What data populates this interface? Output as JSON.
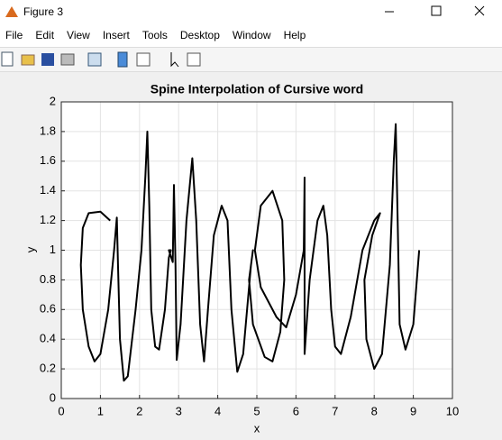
{
  "window": {
    "title": "Figure 3"
  },
  "menu": [
    "File",
    "Edit",
    "View",
    "Insert",
    "Tools",
    "Desktop",
    "Window",
    "Help"
  ],
  "chart_data": {
    "type": "line",
    "title": "Spine Interpolation of Cursive word",
    "xlabel": "x",
    "ylabel": "y",
    "xlim": [
      0,
      10
    ],
    "xticks": [
      0,
      1,
      2,
      3,
      4,
      5,
      6,
      7,
      8,
      9,
      10
    ],
    "ylim": [
      0,
      2
    ],
    "yticks": [
      0,
      0.2,
      0.4,
      0.6,
      0.8,
      1,
      1.2,
      1.4,
      1.6,
      1.8,
      2
    ],
    "grid": true,
    "series": [
      {
        "color": "#000000",
        "x": [
          1.25,
          1.0,
          0.7,
          0.55,
          0.5,
          0.55,
          0.7,
          0.85,
          1.0,
          1.2,
          1.35,
          1.42,
          1.45,
          1.5,
          1.6,
          1.7,
          1.9,
          2.05,
          2.15,
          2.2,
          2.25,
          2.3,
          2.4,
          2.5,
          2.65,
          2.75,
          2.8,
          2.75,
          2.85,
          2.88,
          2.92,
          2.95,
          3.05,
          3.2,
          3.35,
          3.45,
          3.55,
          3.65,
          3.75,
          3.9,
          4.1,
          4.25,
          4.35,
          4.5,
          4.65,
          4.85,
          4.9,
          4.8,
          4.9,
          5.2,
          5.4,
          5.6,
          5.7,
          5.65,
          5.4,
          5.1,
          4.95,
          5.1,
          5.5,
          5.75,
          6.0,
          6.2,
          6.22,
          6.22,
          6.35,
          6.55,
          6.7,
          6.8,
          6.9,
          7.0,
          7.15,
          7.4,
          7.7,
          8.0,
          8.15,
          7.95,
          7.75,
          7.8,
          8.0,
          8.2,
          8.4,
          8.5,
          8.55,
          8.6,
          8.65,
          8.8,
          9.0,
          9.15
        ],
        "values": [
          1.2,
          1.26,
          1.25,
          1.15,
          0.9,
          0.6,
          0.35,
          0.25,
          0.3,
          0.6,
          1.0,
          1.22,
          0.9,
          0.4,
          0.12,
          0.15,
          0.6,
          1.0,
          1.5,
          1.8,
          1.3,
          0.6,
          0.35,
          0.33,
          0.6,
          0.95,
          1.0,
          1.0,
          0.92,
          1.44,
          0.9,
          0.26,
          0.5,
          1.2,
          1.62,
          1.2,
          0.5,
          0.25,
          0.6,
          1.1,
          1.3,
          1.2,
          0.6,
          0.18,
          0.3,
          0.9,
          1.0,
          0.8,
          0.5,
          0.28,
          0.25,
          0.45,
          0.8,
          1.2,
          1.4,
          1.3,
          1.0,
          0.75,
          0.55,
          0.48,
          0.7,
          1.0,
          1.49,
          0.3,
          0.8,
          1.2,
          1.3,
          1.1,
          0.6,
          0.35,
          0.3,
          0.55,
          1.0,
          1.2,
          1.25,
          1.1,
          0.8,
          0.4,
          0.2,
          0.3,
          0.9,
          1.6,
          1.85,
          1.2,
          0.5,
          0.33,
          0.5,
          1.0
        ]
      }
    ]
  }
}
